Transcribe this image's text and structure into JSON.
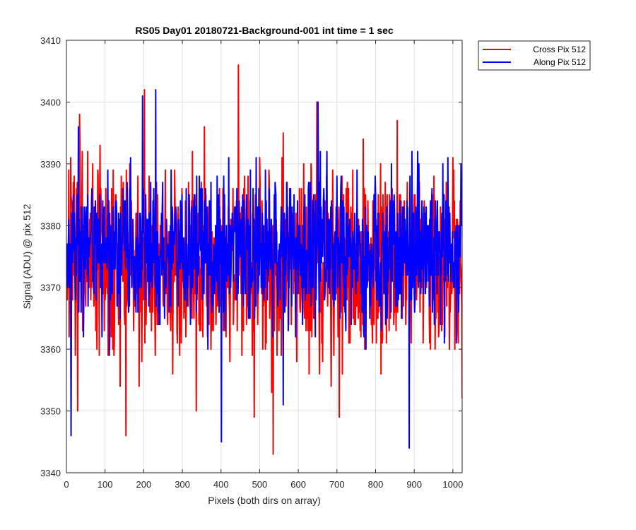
{
  "chart_data": {
    "type": "line",
    "title": "RS05 Day01 20180721-Background-001 int time = 1 sec",
    "xlabel": "Pixels (both dirs on array)",
    "ylabel": "Signal (ADU) @ pix 512",
    "xlim": [
      0,
      1024
    ],
    "ylim": [
      3340,
      3410
    ],
    "x_ticks": [
      0,
      100,
      200,
      300,
      400,
      500,
      600,
      700,
      800,
      900,
      1000
    ],
    "y_ticks": [
      3340,
      3350,
      3360,
      3370,
      3380,
      3390,
      3400,
      3410
    ],
    "grid": true,
    "legend_position": "outside-top-right",
    "series": [
      {
        "name": "Cross Pix 512",
        "color": "#ff0000",
        "n_points": 1024,
        "noise_seed": 7,
        "mean": 3374.5,
        "std": 7.5,
        "min": 3343,
        "max": 3406,
        "features": [
          [
            444,
            3406
          ],
          [
            534,
            3343
          ],
          [
            153,
            3346
          ],
          [
            335,
            3350
          ],
          [
            28,
            3350
          ],
          [
            33,
            3398
          ],
          [
            201,
            3402
          ],
          [
            647,
            3400
          ],
          [
            705,
            3349
          ],
          [
            1023,
            3352
          ]
        ]
      },
      {
        "name": "Along Pix 512",
        "color": "#0000ff",
        "n_points": 1024,
        "noise_seed": 19,
        "mean": 3376,
        "std": 6,
        "min": 3344,
        "max": 3402,
        "features": [
          [
            11,
            3346
          ],
          [
            230,
            3402
          ],
          [
            196,
            3401
          ],
          [
            400,
            3345
          ],
          [
            886,
            3344
          ],
          [
            650,
            3400
          ],
          [
            30,
            3396
          ],
          [
            1020,
            3390
          ],
          [
            560,
            3351
          ]
        ]
      }
    ]
  }
}
